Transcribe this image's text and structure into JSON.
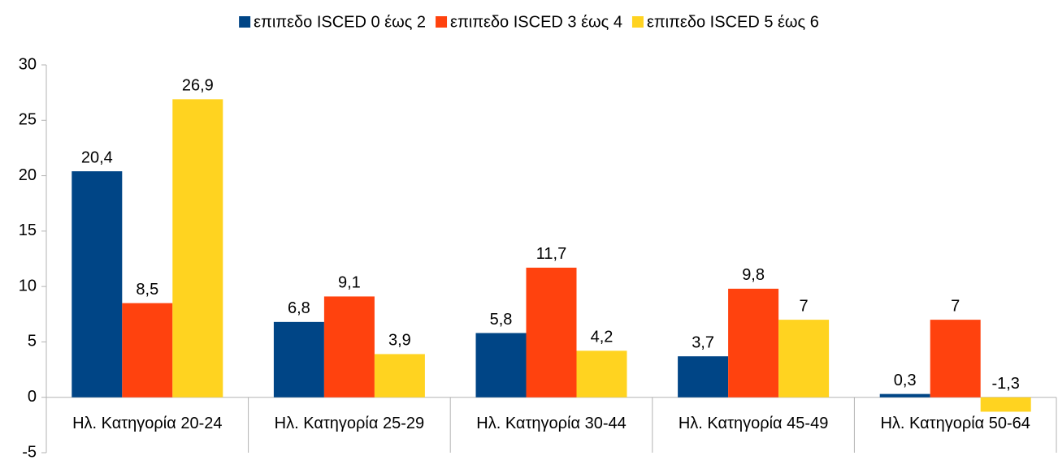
{
  "chart_data": {
    "type": "bar",
    "categories": [
      "Ηλ. Κατηγορία 20-24",
      "Ηλ. Κατηγορία 25-29",
      "Ηλ. Κατηγορία 30-44",
      "Ηλ. Κατηγορία 45-49",
      "Ηλ. Κατηγορία 50-64"
    ],
    "series": [
      {
        "name": "επιπεδο ISCED 0 έως 2",
        "color": "#004586",
        "values": [
          20.4,
          6.8,
          5.8,
          3.7,
          0.3
        ],
        "value_labels": [
          "20,4",
          "6,8",
          "5,8",
          "3,7",
          "0,3"
        ]
      },
      {
        "name": "επιπεδο ISCED 3 έως 4",
        "color": "#ff420e",
        "values": [
          8.5,
          9.1,
          11.7,
          9.8,
          7
        ],
        "value_labels": [
          "8,5",
          "9,1",
          "11,7",
          "9,8",
          "7"
        ]
      },
      {
        "name": "επιπεδο ISCED 5 έως 6",
        "color": "#ffd320",
        "values": [
          26.9,
          3.9,
          4.2,
          7,
          -1.3
        ],
        "value_labels": [
          "26,9",
          "3,9",
          "4,2",
          "7",
          "-1,3"
        ]
      }
    ],
    "ylim": [
      -5,
      30
    ],
    "yticks": [
      -5,
      0,
      5,
      10,
      15,
      20,
      25,
      30
    ],
    "grid": false,
    "legend": "top"
  }
}
